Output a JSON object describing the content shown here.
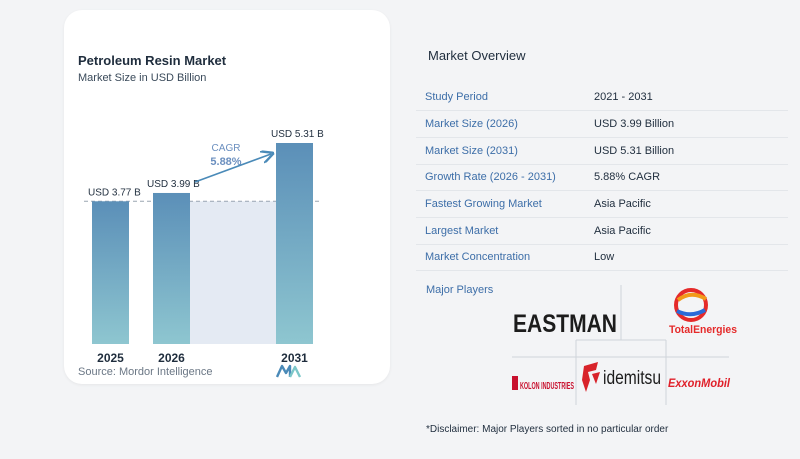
{
  "chart_data": {
    "type": "bar",
    "title": "Petroleum Resin Market",
    "subtitle": "Market Size in USD Billion",
    "categories": [
      "2025",
      "2026",
      "2031"
    ],
    "values": [
      3.77,
      3.99,
      5.31
    ],
    "value_labels": [
      "USD 3.77 B",
      "USD 3.99 B",
      "USD 5.31 B"
    ],
    "ylim": [
      0,
      5.31
    ],
    "reference_value": 3.77,
    "cagr_label": "CAGR",
    "cagr_value": "5.88%",
    "colors": {
      "bar_top": "#5b8fb8",
      "bar_bottom": "#8ec6d0",
      "band": "#e4eaf3",
      "arrow": "#4a8ab8",
      "cagr": "#6b8fbf"
    }
  },
  "source": "Source:  Mordor Intelligence",
  "overview": {
    "title": "Market Overview",
    "rows": [
      {
        "key": "Study Period",
        "value": "2021 - 2031"
      },
      {
        "key": "Market Size (2026)",
        "value": "USD 3.99 Billion"
      },
      {
        "key": "Market Size (2031)",
        "value": "USD 5.31 Billion"
      },
      {
        "key": "Growth Rate (2026 - 2031)",
        "value": "5.88% CAGR"
      },
      {
        "key": "Fastest Growing Market",
        "value": "Asia Pacific"
      },
      {
        "key": "Largest Market",
        "value": "Asia Pacific"
      },
      {
        "key": "Market Concentration",
        "value": "Low"
      }
    ]
  },
  "players": {
    "title": "Major Players",
    "logos": [
      "EASTMAN",
      "TotalEnergies",
      "KOLON INDUSTRIES",
      "idemitsu",
      "ExxonMobil"
    ]
  },
  "disclaimer": "*Disclaimer: Major Players sorted in no particular order"
}
